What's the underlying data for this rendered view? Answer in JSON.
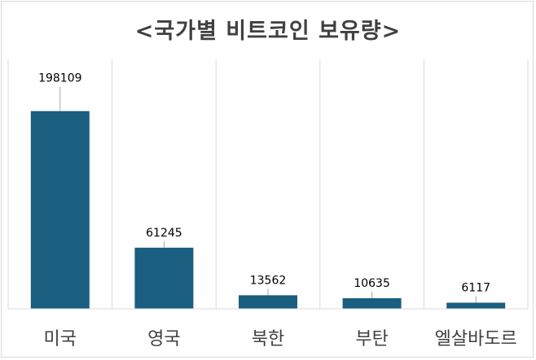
{
  "chart_data": {
    "type": "bar",
    "title": "<국가별 비트코인 보유량>",
    "categories": [
      "미국",
      "영국",
      "북한",
      "부탄",
      "엘살바도르"
    ],
    "values": [
      198109,
      61245,
      13562,
      10635,
      6117
    ],
    "xlabel": "",
    "ylabel": "",
    "ylim": [
      0,
      250000
    ],
    "grid": "vertical category separators",
    "legend": "none",
    "bar_color": "#1a5e80",
    "separator_color": "#d9d9d9",
    "leader_color": "#a6a6a6"
  }
}
